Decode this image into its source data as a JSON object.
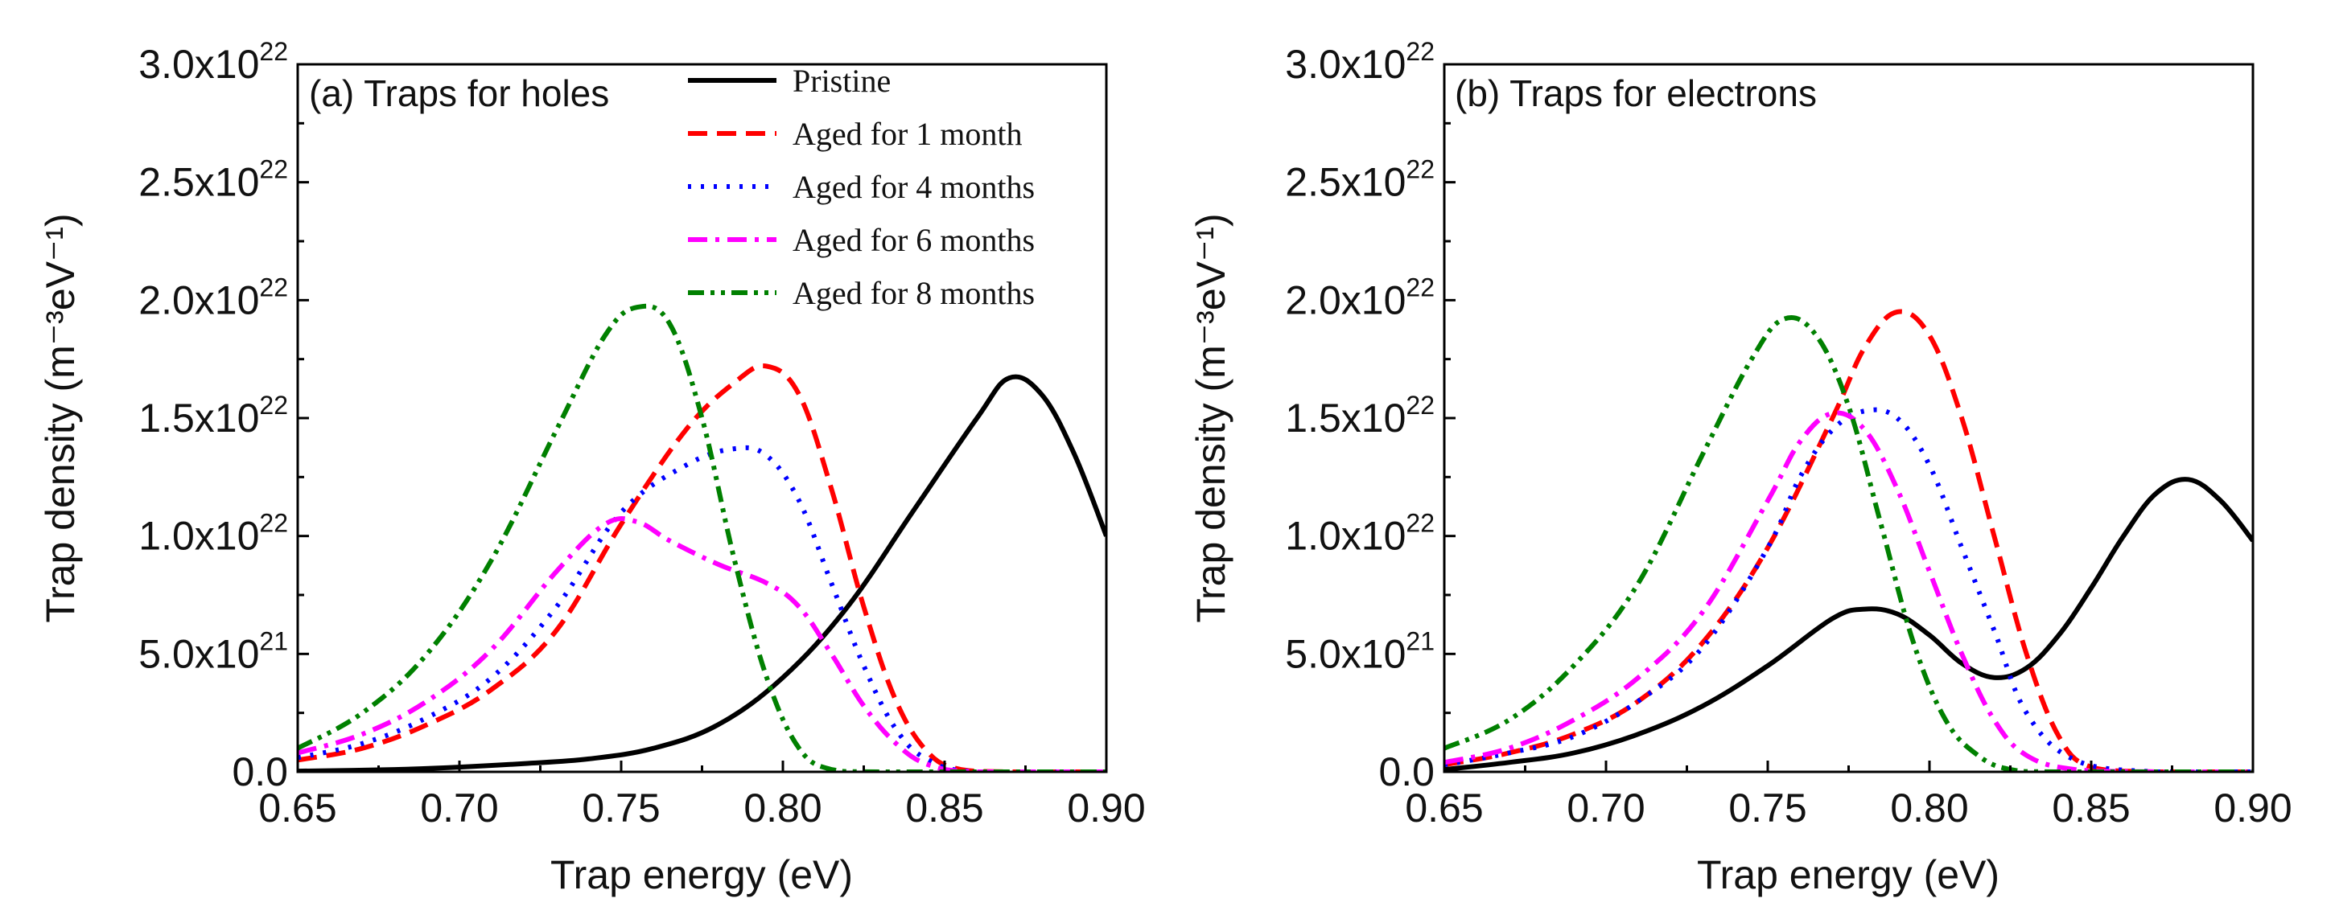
{
  "chart_data": [
    {
      "type": "line",
      "title": "(a) Traps for holes",
      "xlabel": "Trap energy (eV)",
      "ylabel": "Trap density (m⁻³eV⁻¹)",
      "xlim": [
        0.65,
        0.9
      ],
      "ylim": [
        0,
        3e+22
      ],
      "xticks": [
        {
          "value": 0.65,
          "label": "0.65"
        },
        {
          "value": 0.7,
          "label": "0.70"
        },
        {
          "value": 0.75,
          "label": "0.75"
        },
        {
          "value": 0.8,
          "label": "0.80"
        },
        {
          "value": 0.85,
          "label": "0.85"
        },
        {
          "value": 0.9,
          "label": "0.90"
        }
      ],
      "yticks": [
        {
          "value": 0,
          "label": "0.0"
        },
        {
          "value": 5e+21,
          "mant": "5.0x10",
          "exp": "21"
        },
        {
          "value": 1e+22,
          "mant": "1.0x10",
          "exp": "22"
        },
        {
          "value": 1.5e+22,
          "mant": "1.5x10",
          "exp": "22"
        },
        {
          "value": 2e+22,
          "mant": "2.0x10",
          "exp": "22"
        },
        {
          "value": 2.5e+22,
          "mant": "2.5x10",
          "exp": "22"
        },
        {
          "value": 3e+22,
          "mant": "3.0x10",
          "exp": "22"
        }
      ],
      "legend_position": "top-right",
      "series": [
        {
          "name": "Pristine",
          "color": "#000000",
          "dash": "solid",
          "x": [
            0.65,
            0.68,
            0.7,
            0.72,
            0.74,
            0.76,
            0.78,
            0.8,
            0.82,
            0.84,
            0.86,
            0.87,
            0.88,
            0.89,
            0.9
          ],
          "y": [
            3e+19,
            1e+20,
            2e+20,
            3.5e+20,
            5.5e+20,
            1e+21,
            2e+21,
            4e+21,
            7e+21,
            1.1e+22,
            1.5e+22,
            1.67e+22,
            1.6e+22,
            1.35e+22,
            1e+22
          ]
        },
        {
          "name": "Aged for 1 month",
          "color": "#ff0000",
          "dash": "dashed",
          "x": [
            0.65,
            0.67,
            0.69,
            0.71,
            0.73,
            0.75,
            0.77,
            0.785,
            0.795,
            0.805,
            0.815,
            0.825,
            0.835,
            0.845,
            0.855,
            0.87,
            0.9
          ],
          "y": [
            5e+20,
            1e+21,
            2e+21,
            3.5e+21,
            6e+21,
            1.05e+22,
            1.45e+22,
            1.65e+22,
            1.72e+22,
            1.6e+22,
            1.2e+22,
            7e+21,
            3e+21,
            8e+20,
            1e+20,
            0,
            0
          ]
        },
        {
          "name": "Aged for 4 months",
          "color": "#0000ff",
          "dash": "dotted",
          "x": [
            0.65,
            0.67,
            0.69,
            0.71,
            0.73,
            0.75,
            0.77,
            0.785,
            0.795,
            0.805,
            0.815,
            0.825,
            0.835,
            0.845,
            0.86,
            0.9
          ],
          "y": [
            6e+20,
            1.2e+21,
            2.3e+21,
            4e+21,
            7e+21,
            1.1e+22,
            1.3e+22,
            1.37e+22,
            1.34e+22,
            1.15e+22,
            8e+21,
            4.5e+21,
            1.8e+21,
            5e+20,
            0,
            0
          ]
        },
        {
          "name": "Aged for 6 months",
          "color": "#ff00ff",
          "dash": "dashdot",
          "x": [
            0.65,
            0.67,
            0.69,
            0.71,
            0.73,
            0.745,
            0.755,
            0.765,
            0.78,
            0.795,
            0.805,
            0.815,
            0.825,
            0.835,
            0.845,
            0.86,
            0.9
          ],
          "y": [
            8e+20,
            1.6e+21,
            3e+21,
            5.2e+21,
            8.5e+21,
            1.05e+22,
            1.06e+22,
            9.8e+21,
            8.8e+21,
            8e+21,
            7e+21,
            5e+21,
            2.8e+21,
            1.2e+21,
            3e+20,
            0,
            0
          ]
        },
        {
          "name": "Aged for 8 months",
          "color": "#008000",
          "dash": "dashdotdot",
          "x": [
            0.65,
            0.67,
            0.69,
            0.71,
            0.73,
            0.745,
            0.755,
            0.765,
            0.775,
            0.785,
            0.795,
            0.805,
            0.815,
            0.83,
            0.9
          ],
          "y": [
            1e+21,
            2.5e+21,
            5e+21,
            9e+21,
            1.45e+22,
            1.85e+22,
            1.97e+22,
            1.9e+22,
            1.5e+22,
            9e+21,
            4e+21,
            1e+21,
            1e+20,
            0,
            0
          ]
        }
      ]
    },
    {
      "type": "line",
      "title": "(b) Traps for electrons",
      "xlabel": "Trap energy (eV)",
      "ylabel": "Trap density (m⁻³eV⁻¹)",
      "xlim": [
        0.65,
        0.9
      ],
      "ylim": [
        0,
        3e+22
      ],
      "xticks": [
        {
          "value": 0.65,
          "label": "0.65"
        },
        {
          "value": 0.7,
          "label": "0.70"
        },
        {
          "value": 0.75,
          "label": "0.75"
        },
        {
          "value": 0.8,
          "label": "0.80"
        },
        {
          "value": 0.85,
          "label": "0.85"
        },
        {
          "value": 0.9,
          "label": "0.90"
        }
      ],
      "yticks": [
        {
          "value": 0,
          "label": "0.0"
        },
        {
          "value": 5e+21,
          "mant": "5.0x10",
          "exp": "21"
        },
        {
          "value": 1e+22,
          "mant": "1.0x10",
          "exp": "22"
        },
        {
          "value": 1.5e+22,
          "mant": "1.5x10",
          "exp": "22"
        },
        {
          "value": 2e+22,
          "mant": "2.0x10",
          "exp": "22"
        },
        {
          "value": 2.5e+22,
          "mant": "2.5x10",
          "exp": "22"
        },
        {
          "value": 3e+22,
          "mant": "3.0x10",
          "exp": "22"
        }
      ],
      "series": [
        {
          "name": "Pristine",
          "color": "#000000",
          "dash": "solid",
          "x": [
            0.65,
            0.67,
            0.69,
            0.71,
            0.73,
            0.75,
            0.77,
            0.78,
            0.79,
            0.8,
            0.81,
            0.82,
            0.83,
            0.84,
            0.85,
            0.86,
            0.87,
            0.88,
            0.89,
            0.9
          ],
          "y": [
            1e+20,
            4e+20,
            8e+20,
            1.6e+21,
            2.8e+21,
            4.5e+21,
            6.5e+21,
            6.9e+21,
            6.7e+21,
            5.8e+21,
            4.6e+21,
            4e+21,
            4.4e+21,
            5.8e+21,
            7.8e+21,
            1e+22,
            1.18e+22,
            1.24e+22,
            1.15e+22,
            9.8e+21
          ]
        },
        {
          "name": "Aged for 1 month",
          "color": "#ff0000",
          "dash": "dashed",
          "x": [
            0.65,
            0.67,
            0.69,
            0.71,
            0.73,
            0.75,
            0.77,
            0.78,
            0.79,
            0.8,
            0.81,
            0.82,
            0.83,
            0.84,
            0.85,
            0.87,
            0.9
          ],
          "y": [
            3e+20,
            8e+20,
            1.6e+21,
            3e+21,
            5.5e+21,
            9.5e+21,
            1.5e+22,
            1.8e+22,
            1.95e+22,
            1.85e+22,
            1.5e+22,
            1e+22,
            5e+21,
            1.5e+21,
            2e+20,
            0,
            0
          ]
        },
        {
          "name": "Aged for 4 months",
          "color": "#0000ff",
          "dash": "dotted",
          "x": [
            0.65,
            0.67,
            0.69,
            0.71,
            0.73,
            0.75,
            0.76,
            0.77,
            0.78,
            0.79,
            0.8,
            0.81,
            0.82,
            0.83,
            0.845,
            0.87,
            0.9
          ],
          "y": [
            3e+20,
            8e+20,
            1.5e+21,
            3e+21,
            5.3e+21,
            9.5e+21,
            1.25e+22,
            1.45e+22,
            1.53e+22,
            1.5e+22,
            1.3e+22,
            9.5e+21,
            6e+21,
            2.5e+21,
            5e+20,
            0,
            0
          ]
        },
        {
          "name": "Aged for 6 months",
          "color": "#ff00ff",
          "dash": "dashdot",
          "x": [
            0.65,
            0.67,
            0.69,
            0.71,
            0.73,
            0.75,
            0.76,
            0.77,
            0.78,
            0.79,
            0.8,
            0.81,
            0.82,
            0.83,
            0.845,
            0.87,
            0.9
          ],
          "y": [
            4e+20,
            1e+21,
            2.2e+21,
            4e+21,
            6.8e+21,
            1.15e+22,
            1.4e+22,
            1.52e+22,
            1.45e+22,
            1.2e+22,
            8.5e+21,
            5e+21,
            2.2e+21,
            7e+20,
            1e+20,
            0,
            0
          ]
        },
        {
          "name": "Aged for 8 months",
          "color": "#008000",
          "dash": "dashdotdot",
          "x": [
            0.65,
            0.67,
            0.69,
            0.71,
            0.73,
            0.745,
            0.755,
            0.765,
            0.775,
            0.785,
            0.795,
            0.805,
            0.815,
            0.825,
            0.84,
            0.9
          ],
          "y": [
            1e+21,
            2.2e+21,
            4.5e+21,
            8e+21,
            1.35e+22,
            1.75e+22,
            1.92e+22,
            1.85e+22,
            1.55e+22,
            1.05e+22,
            5.5e+21,
            2.2e+21,
            7e+20,
            1e+20,
            0,
            0
          ]
        }
      ]
    }
  ]
}
